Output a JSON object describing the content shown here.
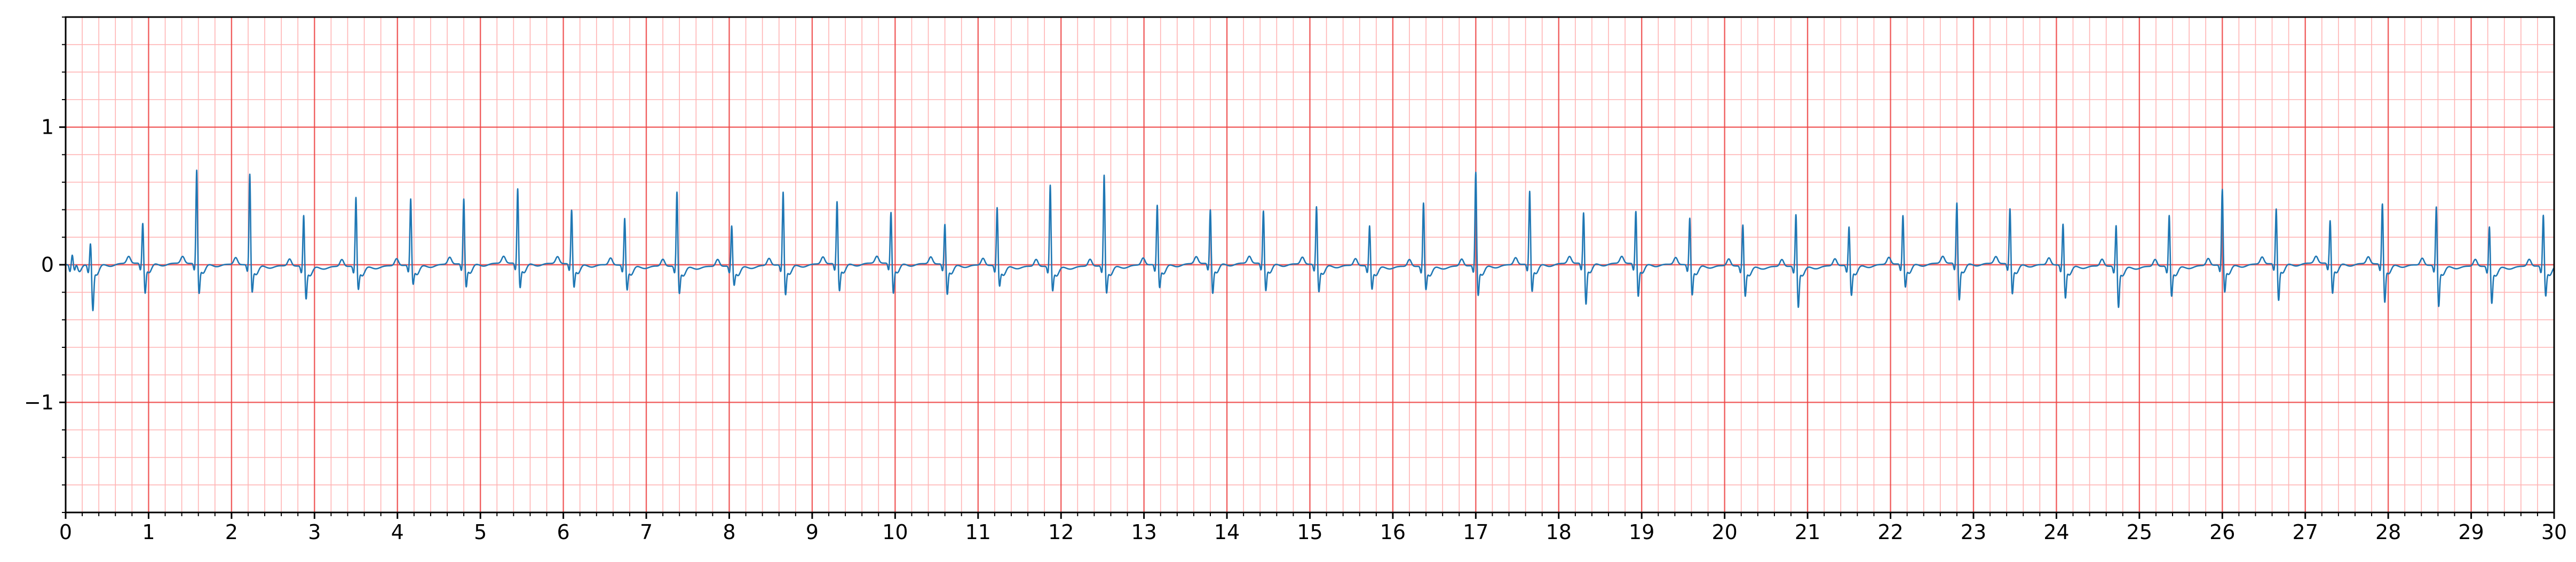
{
  "chart_data": {
    "type": "line",
    "title": "",
    "xlabel": "",
    "ylabel": "",
    "xlim": [
      0,
      30
    ],
    "ylim": [
      -1.8,
      1.8
    ],
    "x_major_ticks": [
      0,
      1,
      2,
      3,
      4,
      5,
      6,
      7,
      8,
      9,
      10,
      11,
      12,
      13,
      14,
      15,
      16,
      17,
      18,
      19,
      20,
      21,
      22,
      23,
      24,
      25,
      26,
      27,
      28,
      29,
      30
    ],
    "x_tick_labels": [
      "0",
      "1",
      "2",
      "3",
      "4",
      "5",
      "6",
      "7",
      "8",
      "9",
      "10",
      "11",
      "12",
      "13",
      "14",
      "15",
      "16",
      "17",
      "18",
      "19",
      "20",
      "21",
      "22",
      "23",
      "24",
      "25",
      "26",
      "27",
      "28",
      "29",
      "30"
    ],
    "x_minor_step": 0.2,
    "y_major_ticks": [
      -1,
      0,
      1
    ],
    "y_tick_labels": [
      "−1",
      "0",
      "1"
    ],
    "y_minor_step": 0.2,
    "grid": true,
    "grid_major_color": "#ee4444",
    "grid_minor_color": "#ffb3b3",
    "series": [
      {
        "name": "ECG",
        "color": "#1f77b4",
        "beat_times": [
          0.08,
          0.3,
          0.93,
          1.58,
          2.22,
          2.87,
          3.5,
          4.16,
          4.8,
          5.45,
          6.1,
          6.74,
          7.37,
          8.03,
          8.65,
          9.3,
          9.95,
          10.6,
          11.23,
          11.87,
          12.52,
          13.16,
          13.8,
          14.44,
          15.08,
          15.72,
          16.37,
          17.0,
          17.65,
          18.3,
          18.93,
          19.58,
          20.22,
          20.86,
          21.5,
          22.15,
          22.8,
          23.44,
          24.08,
          24.72,
          25.36,
          26.0,
          26.65,
          27.3,
          27.93,
          28.58,
          29.22,
          29.87
        ],
        "r_peak_amplitudes": [
          0.07,
          0.18,
          0.3,
          0.69,
          0.67,
          0.38,
          0.51,
          0.49,
          0.48,
          0.55,
          0.4,
          0.35,
          0.55,
          0.3,
          0.54,
          0.46,
          0.38,
          0.3,
          0.43,
          0.6,
          0.67,
          0.44,
          0.4,
          0.39,
          0.43,
          0.3,
          0.47,
          0.69,
          0.54,
          0.38,
          0.39,
          0.35,
          0.31,
          0.39,
          0.29,
          0.36,
          0.45,
          0.41,
          0.31,
          0.31,
          0.38,
          0.56,
          0.41,
          0.32,
          0.45,
          0.44,
          0.3,
          0.38
        ],
        "s_trough_amplitudes": [
          -0.05,
          -0.3,
          -0.2,
          -0.2,
          -0.18,
          -0.22,
          -0.15,
          -0.12,
          -0.15,
          -0.16,
          -0.15,
          -0.16,
          -0.18,
          -0.12,
          -0.2,
          -0.18,
          -0.2,
          -0.2,
          -0.13,
          -0.16,
          -0.18,
          -0.15,
          -0.2,
          -0.18,
          -0.18,
          -0.15,
          -0.15,
          -0.2,
          -0.18,
          -0.28,
          -0.22,
          -0.2,
          -0.2,
          -0.28,
          -0.2,
          -0.15,
          -0.25,
          -0.2,
          -0.22,
          -0.28,
          -0.2,
          -0.18,
          -0.25,
          -0.2,
          -0.26,
          -0.28,
          -0.25,
          -0.2
        ]
      }
    ]
  }
}
